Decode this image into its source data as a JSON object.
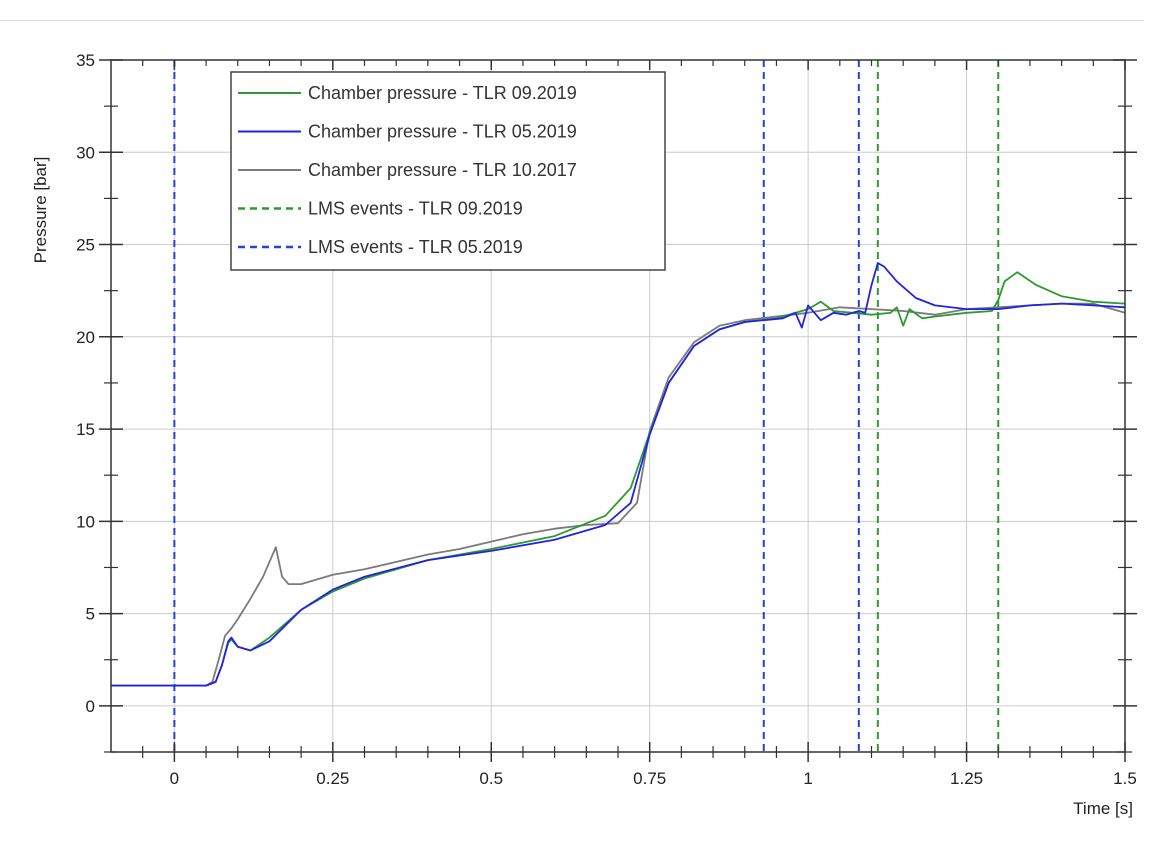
{
  "chart_data": {
    "type": "line",
    "title": "",
    "xlabel": "Time [s]",
    "ylabel": "Pressure [bar]",
    "xlim": [
      -0.1,
      1.5
    ],
    "ylim": [
      -2.5,
      35
    ],
    "x_ticks": [
      {
        "value": 0,
        "label": "0"
      },
      {
        "value": 0.25,
        "label": "0.25"
      },
      {
        "value": 0.5,
        "label": "0.5"
      },
      {
        "value": 0.75,
        "label": "0.75"
      },
      {
        "value": 1,
        "label": "1"
      },
      {
        "value": 1.25,
        "label": "1.25"
      },
      {
        "value": 1.5,
        "label": "1.5"
      }
    ],
    "y_ticks": [
      {
        "value": 0,
        "label": "0"
      },
      {
        "value": 5,
        "label": "5"
      },
      {
        "value": 10,
        "label": "10"
      },
      {
        "value": 15,
        "label": "15"
      },
      {
        "value": 20,
        "label": "20"
      },
      {
        "value": 25,
        "label": "25"
      },
      {
        "value": 30,
        "label": "30"
      },
      {
        "value": 35,
        "label": "35"
      }
    ],
    "grid": true,
    "legend_position": "top-left",
    "series": [
      {
        "name": "Chamber pressure - TLR 09.2019",
        "color": "#2e9a2e",
        "style": "solid",
        "x": [
          -0.1,
          0.05,
          0.065,
          0.075,
          0.085,
          0.09,
          0.1,
          0.12,
          0.15,
          0.2,
          0.25,
          0.3,
          0.4,
          0.5,
          0.6,
          0.68,
          0.72,
          0.75,
          0.78,
          0.82,
          0.86,
          0.9,
          0.95,
          0.98,
          1.0,
          1.02,
          1.04,
          1.07,
          1.1,
          1.13,
          1.14,
          1.15,
          1.16,
          1.18,
          1.2,
          1.25,
          1.29,
          1.3,
          1.31,
          1.33,
          1.36,
          1.4,
          1.45,
          1.5
        ],
        "y": [
          1.1,
          1.1,
          1.3,
          2.2,
          3.4,
          3.6,
          3.2,
          3.0,
          3.7,
          5.2,
          6.2,
          6.9,
          7.9,
          8.5,
          9.2,
          10.3,
          11.8,
          14.8,
          17.5,
          19.5,
          20.4,
          20.8,
          21.0,
          21.3,
          21.5,
          21.9,
          21.4,
          21.3,
          21.2,
          21.3,
          21.6,
          20.6,
          21.5,
          21.0,
          21.1,
          21.3,
          21.4,
          22.0,
          23.0,
          23.5,
          22.8,
          22.2,
          21.9,
          21.8
        ]
      },
      {
        "name": "Chamber pressure - TLR 05.2019",
        "color": "#2222e6",
        "style": "solid",
        "x": [
          -0.1,
          0.05,
          0.065,
          0.075,
          0.085,
          0.09,
          0.1,
          0.12,
          0.15,
          0.2,
          0.25,
          0.3,
          0.4,
          0.5,
          0.6,
          0.68,
          0.72,
          0.75,
          0.78,
          0.82,
          0.86,
          0.9,
          0.93,
          0.96,
          0.98,
          0.99,
          1.0,
          1.02,
          1.04,
          1.06,
          1.08,
          1.09,
          1.1,
          1.11,
          1.12,
          1.14,
          1.17,
          1.2,
          1.25,
          1.3,
          1.35,
          1.4,
          1.45,
          1.5
        ],
        "y": [
          1.1,
          1.1,
          1.3,
          2.2,
          3.5,
          3.7,
          3.2,
          3.0,
          3.5,
          5.2,
          6.3,
          7.0,
          7.9,
          8.4,
          9.0,
          9.8,
          11.0,
          14.7,
          17.5,
          19.5,
          20.4,
          20.8,
          20.9,
          21.0,
          21.3,
          20.5,
          21.7,
          20.9,
          21.3,
          21.2,
          21.4,
          21.3,
          22.8,
          24.0,
          23.8,
          23.0,
          22.1,
          21.7,
          21.5,
          21.5,
          21.7,
          21.8,
          21.7,
          21.6
        ]
      },
      {
        "name": "Chamber pressure - TLR 10.2017",
        "color": "#7a7a7a",
        "style": "solid",
        "x": [
          -0.1,
          0.05,
          0.06,
          0.07,
          0.08,
          0.09,
          0.1,
          0.12,
          0.14,
          0.16,
          0.17,
          0.18,
          0.2,
          0.25,
          0.3,
          0.35,
          0.4,
          0.45,
          0.5,
          0.55,
          0.6,
          0.65,
          0.7,
          0.73,
          0.75,
          0.78,
          0.82,
          0.86,
          0.9,
          0.95,
          1.0,
          1.05,
          1.1,
          1.15,
          1.2,
          1.25,
          1.3,
          1.35,
          1.4,
          1.45,
          1.5
        ],
        "y": [
          1.1,
          1.1,
          1.3,
          2.5,
          3.8,
          4.2,
          4.7,
          5.8,
          7.0,
          8.6,
          7.0,
          6.6,
          6.6,
          7.1,
          7.4,
          7.8,
          8.2,
          8.5,
          8.9,
          9.3,
          9.6,
          9.8,
          9.9,
          11.0,
          14.9,
          17.8,
          19.7,
          20.6,
          20.9,
          21.1,
          21.3,
          21.6,
          21.5,
          21.4,
          21.2,
          21.5,
          21.6,
          21.7,
          21.8,
          21.8,
          21.3
        ]
      }
    ],
    "event_series": [
      {
        "name": "LMS events - TLR 09.2019",
        "color": "#2e9a2e",
        "style": "dashed",
        "x": [
          1.11,
          1.3
        ]
      },
      {
        "name": "LMS events - TLR 05.2019",
        "color": "#2244dd",
        "style": "dashed",
        "x": [
          0,
          0.93,
          1.08
        ]
      }
    ]
  }
}
